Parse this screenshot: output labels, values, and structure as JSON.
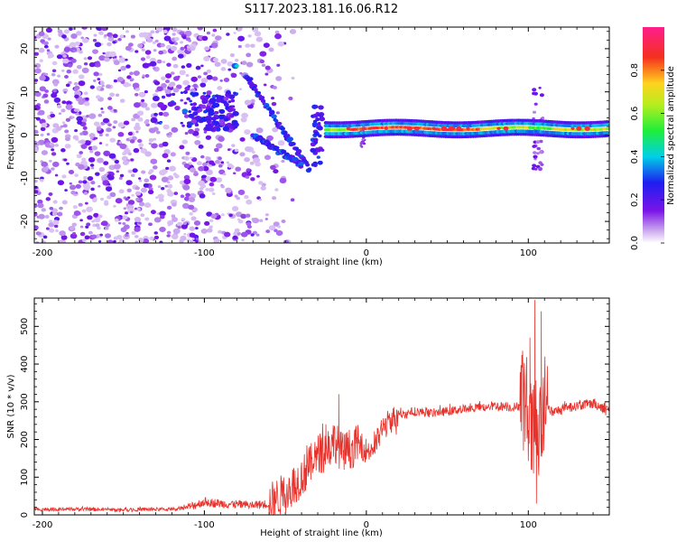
{
  "figure": {
    "title": "S117.2023.181.16.06.R12"
  },
  "chart_data": [
    {
      "type": "heatmap",
      "xlabel": "Height of straight line (km)",
      "ylabel": "Frequency (Hz)",
      "xlim": [
        -205,
        150
      ],
      "ylim": [
        -25,
        25
      ],
      "x_ticks": [
        -200,
        -100,
        0,
        100
      ],
      "y_ticks": [
        -20,
        -10,
        0,
        10,
        20
      ],
      "colorbar": {
        "label": "Normalized spectral amplitude",
        "range": [
          0,
          1
        ],
        "ticks": [
          "0.0",
          "0.2",
          "0.4",
          "0.6",
          "0.8"
        ],
        "colormap": "rainbow (white-violet-blue-cyan-green-yellow-red-magenta)"
      },
      "features": {
        "noise_region_x": [
          -205,
          -60
        ],
        "descending_streaks": [
          {
            "x": [
              -75,
              -35
            ],
            "y": [
              14,
              -8
            ]
          },
          {
            "x": [
              -70,
              -40
            ],
            "y": [
              0,
              -7
            ]
          }
        ],
        "tone_ridge": {
          "x_start": -25,
          "x_end": 150,
          "y": 1.5,
          "peak_amplitude": 0.9
        }
      },
      "grid": false
    },
    {
      "type": "line",
      "xlabel": "Height of straight line (km)",
      "ylabel": "SNR (10 * v/v)",
      "xlim": [
        -205,
        150
      ],
      "ylim": [
        0,
        575
      ],
      "x_ticks": [
        -200,
        -100,
        0,
        100
      ],
      "y_ticks": [
        0,
        100,
        200,
        300,
        400,
        500
      ],
      "color": "#e8312a",
      "series": [
        {
          "x": [
            -205,
            -180,
            -150,
            -120,
            -110,
            -100,
            -90,
            -80,
            -70,
            -60,
            -50,
            -40,
            -35,
            -30,
            -25,
            -20,
            -15,
            -10,
            -5,
            0,
            5,
            10,
            15,
            20,
            30,
            40,
            50,
            60,
            70,
            80,
            90,
            95,
            98,
            100,
            102,
            104,
            106,
            108,
            110,
            115,
            120,
            130,
            140,
            150
          ],
          "values": [
            15,
            15,
            14,
            15,
            20,
            35,
            30,
            28,
            25,
            30,
            60,
            100,
            130,
            160,
            175,
            200,
            165,
            175,
            190,
            170,
            180,
            230,
            250,
            265,
            275,
            270,
            275,
            280,
            285,
            290,
            285,
            290,
            300,
            280,
            200,
            250,
            180,
            230,
            300,
            270,
            280,
            290,
            295,
            280
          ]
        }
      ],
      "spikes": [
        {
          "x": -17,
          "y": 320
        },
        {
          "x": -25,
          "y": 240
        },
        {
          "x": 104,
          "y": 570
        },
        {
          "x": 108,
          "y": 540
        },
        {
          "x": 101,
          "y": 470
        },
        {
          "x": 105,
          "y": 30
        }
      ],
      "grid": false
    }
  ]
}
